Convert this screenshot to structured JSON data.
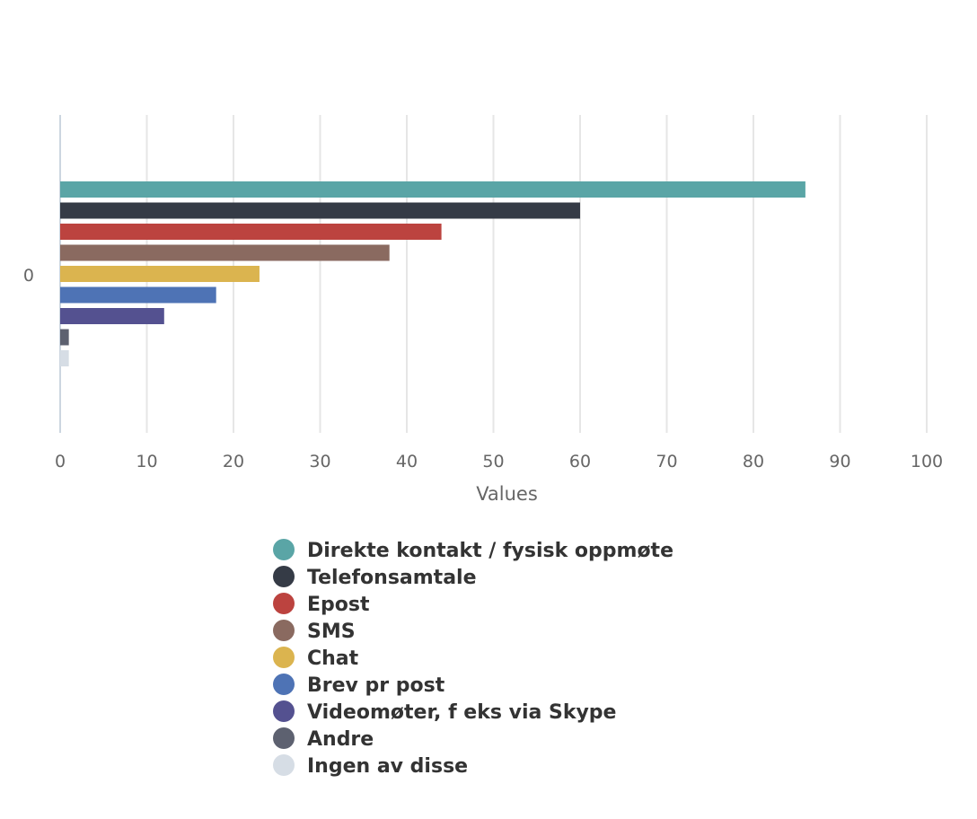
{
  "chart_data": {
    "type": "bar",
    "orientation": "horizontal",
    "categories": [
      "0"
    ],
    "x_ticks": [
      0,
      10,
      20,
      30,
      40,
      50,
      60,
      70,
      80,
      90,
      100
    ],
    "xlim": [
      0,
      100
    ],
    "xlabel": "Values",
    "grid": true,
    "legend_position": "bottom",
    "series": [
      {
        "name": "Direkte kontakt / fysisk oppmøte",
        "values": [
          86
        ],
        "color": "#5aa5a6"
      },
      {
        "name": "Telefonsamtale",
        "values": [
          60
        ],
        "color": "#353b46"
      },
      {
        "name": "Epost",
        "values": [
          44
        ],
        "color": "#bc433f"
      },
      {
        "name": "SMS",
        "values": [
          38
        ],
        "color": "#8a6a60"
      },
      {
        "name": "Chat",
        "values": [
          23
        ],
        "color": "#dbb44f"
      },
      {
        "name": "Brev pr post",
        "values": [
          18
        ],
        "color": "#4e73b5"
      },
      {
        "name": "Videomøter, f eks via Skype",
        "values": [
          12
        ],
        "color": "#545190"
      },
      {
        "name": "Andre",
        "values": [
          1
        ],
        "color": "#5d6170"
      },
      {
        "name": "Ingen av disse",
        "values": [
          1
        ],
        "color": "#d6dde5"
      }
    ]
  }
}
